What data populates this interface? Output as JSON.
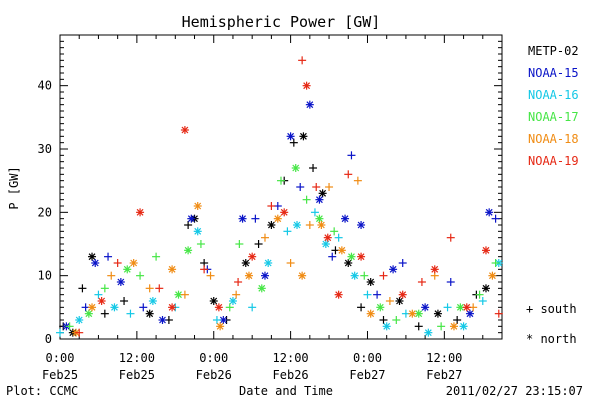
{
  "chart_data": {
    "type": "scatter",
    "title": "Hemispheric Power [GW]",
    "xlabel": "Date and Time",
    "ylabel": "P [GW]",
    "ylim": [
      0,
      48
    ],
    "xlim_hours": [
      0,
      69
    ],
    "x_units": "hours since 2011-02-25 00:00",
    "yticks": [
      0,
      10,
      20,
      30,
      40
    ],
    "xticks": [
      {
        "hour": 0,
        "label_top": "0:00",
        "label_bottom": "Feb25"
      },
      {
        "hour": 12,
        "label_top": "12:00",
        "label_bottom": "Feb25"
      },
      {
        "hour": 24,
        "label_top": "0:00",
        "label_bottom": "Feb26"
      },
      {
        "hour": 36,
        "label_top": "12:00",
        "label_bottom": "Feb26"
      },
      {
        "hour": 48,
        "label_top": "0:00",
        "label_bottom": "Feb27"
      },
      {
        "hour": 60,
        "label_top": "12:00",
        "label_bottom": "Feb27"
      }
    ],
    "grid": false,
    "legend_position": "right",
    "marker_legend": [
      {
        "symbol": "+",
        "label": "south"
      },
      {
        "symbol": "*",
        "label": "north"
      }
    ],
    "series": [
      {
        "name": "METP-02",
        "color": "#000000",
        "points": [
          {
            "x": 0.5,
            "y": 2,
            "m": "plus"
          },
          {
            "x": 2,
            "y": 1,
            "m": "star"
          },
          {
            "x": 3.5,
            "y": 8,
            "m": "plus"
          },
          {
            "x": 5,
            "y": 13,
            "m": "star"
          },
          {
            "x": 7,
            "y": 4,
            "m": "plus"
          },
          {
            "x": 10,
            "y": 6,
            "m": "plus"
          },
          {
            "x": 14,
            "y": 4,
            "m": "star"
          },
          {
            "x": 17,
            "y": 3,
            "m": "plus"
          },
          {
            "x": 20,
            "y": 18,
            "m": "plus"
          },
          {
            "x": 21,
            "y": 19,
            "m": "star"
          },
          {
            "x": 22.5,
            "y": 12,
            "m": "plus"
          },
          {
            "x": 24,
            "y": 6,
            "m": "star"
          },
          {
            "x": 26,
            "y": 3,
            "m": "plus"
          },
          {
            "x": 29,
            "y": 12,
            "m": "star"
          },
          {
            "x": 31,
            "y": 15,
            "m": "plus"
          },
          {
            "x": 33,
            "y": 18,
            "m": "star"
          },
          {
            "x": 35,
            "y": 25,
            "m": "plus"
          },
          {
            "x": 36.5,
            "y": 31,
            "m": "plus"
          },
          {
            "x": 38,
            "y": 32,
            "m": "star"
          },
          {
            "x": 39.5,
            "y": 27,
            "m": "plus"
          },
          {
            "x": 41,
            "y": 23,
            "m": "star"
          },
          {
            "x": 43,
            "y": 14,
            "m": "plus"
          },
          {
            "x": 45,
            "y": 12,
            "m": "star"
          },
          {
            "x": 47,
            "y": 5,
            "m": "plus"
          },
          {
            "x": 48.5,
            "y": 9,
            "m": "star"
          },
          {
            "x": 50.5,
            "y": 3,
            "m": "plus"
          },
          {
            "x": 53,
            "y": 6,
            "m": "star"
          },
          {
            "x": 56,
            "y": 2,
            "m": "plus"
          },
          {
            "x": 59,
            "y": 4,
            "m": "star"
          },
          {
            "x": 62,
            "y": 3,
            "m": "plus"
          },
          {
            "x": 65,
            "y": 7,
            "m": "plus"
          },
          {
            "x": 66.5,
            "y": 8,
            "m": "star"
          }
        ]
      },
      {
        "name": "NOAA-15",
        "color": "#0a14c8",
        "points": [
          {
            "x": 1,
            "y": 2,
            "m": "star"
          },
          {
            "x": 4,
            "y": 5,
            "m": "plus"
          },
          {
            "x": 5.5,
            "y": 12,
            "m": "star"
          },
          {
            "x": 7.5,
            "y": 13,
            "m": "plus"
          },
          {
            "x": 9.5,
            "y": 9,
            "m": "star"
          },
          {
            "x": 13,
            "y": 5,
            "m": "plus"
          },
          {
            "x": 16,
            "y": 3,
            "m": "star"
          },
          {
            "x": 20.5,
            "y": 19,
            "m": "star"
          },
          {
            "x": 23,
            "y": 11,
            "m": "plus"
          },
          {
            "x": 25.5,
            "y": 3,
            "m": "star"
          },
          {
            "x": 28.5,
            "y": 19,
            "m": "star"
          },
          {
            "x": 30.5,
            "y": 19,
            "m": "plus"
          },
          {
            "x": 32,
            "y": 10,
            "m": "star"
          },
          {
            "x": 34,
            "y": 21,
            "m": "plus"
          },
          {
            "x": 36,
            "y": 32,
            "m": "star"
          },
          {
            "x": 37.5,
            "y": 24,
            "m": "plus"
          },
          {
            "x": 39,
            "y": 37,
            "m": "star"
          },
          {
            "x": 40.5,
            "y": 22,
            "m": "star"
          },
          {
            "x": 42.5,
            "y": 13,
            "m": "plus"
          },
          {
            "x": 44.5,
            "y": 19,
            "m": "star"
          },
          {
            "x": 45.5,
            "y": 29,
            "m": "plus"
          },
          {
            "x": 47,
            "y": 18,
            "m": "star"
          },
          {
            "x": 49.5,
            "y": 7,
            "m": "plus"
          },
          {
            "x": 52,
            "y": 11,
            "m": "star"
          },
          {
            "x": 53.5,
            "y": 12,
            "m": "plus"
          },
          {
            "x": 57,
            "y": 5,
            "m": "star"
          },
          {
            "x": 61,
            "y": 9,
            "m": "plus"
          },
          {
            "x": 64,
            "y": 4,
            "m": "star"
          },
          {
            "x": 67,
            "y": 20,
            "m": "star"
          },
          {
            "x": 68,
            "y": 19,
            "m": "plus"
          }
        ]
      },
      {
        "name": "NOAA-16",
        "color": "#14c8e6",
        "points": [
          {
            "x": 0,
            "y": 1,
            "m": "plus"
          },
          {
            "x": 3,
            "y": 3,
            "m": "star"
          },
          {
            "x": 6,
            "y": 7,
            "m": "plus"
          },
          {
            "x": 8.5,
            "y": 5,
            "m": "star"
          },
          {
            "x": 11,
            "y": 4,
            "m": "plus"
          },
          {
            "x": 14.5,
            "y": 6,
            "m": "star"
          },
          {
            "x": 18,
            "y": 5,
            "m": "plus"
          },
          {
            "x": 21.5,
            "y": 17,
            "m": "star"
          },
          {
            "x": 24.5,
            "y": 3,
            "m": "plus"
          },
          {
            "x": 27,
            "y": 6,
            "m": "star"
          },
          {
            "x": 30,
            "y": 5,
            "m": "plus"
          },
          {
            "x": 32.5,
            "y": 12,
            "m": "star"
          },
          {
            "x": 35.5,
            "y": 17,
            "m": "plus"
          },
          {
            "x": 37,
            "y": 18,
            "m": "star"
          },
          {
            "x": 39.8,
            "y": 20,
            "m": "plus"
          },
          {
            "x": 41.5,
            "y": 15,
            "m": "star"
          },
          {
            "x": 43.5,
            "y": 16,
            "m": "plus"
          },
          {
            "x": 46,
            "y": 10,
            "m": "star"
          },
          {
            "x": 48,
            "y": 7,
            "m": "plus"
          },
          {
            "x": 51,
            "y": 2,
            "m": "star"
          },
          {
            "x": 54,
            "y": 4,
            "m": "plus"
          },
          {
            "x": 57.5,
            "y": 1,
            "m": "star"
          },
          {
            "x": 60.5,
            "y": 5,
            "m": "plus"
          },
          {
            "x": 63,
            "y": 2,
            "m": "star"
          },
          {
            "x": 66,
            "y": 6,
            "m": "plus"
          },
          {
            "x": 68.5,
            "y": 12,
            "m": "star"
          }
        ]
      },
      {
        "name": "NOAA-17",
        "color": "#46e646",
        "points": [
          {
            "x": 1.5,
            "y": 2,
            "m": "plus"
          },
          {
            "x": 4.5,
            "y": 4,
            "m": "star"
          },
          {
            "x": 7,
            "y": 8,
            "m": "plus"
          },
          {
            "x": 10.5,
            "y": 11,
            "m": "star"
          },
          {
            "x": 12.5,
            "y": 10,
            "m": "plus"
          },
          {
            "x": 15,
            "y": 13,
            "m": "plus"
          },
          {
            "x": 18.5,
            "y": 7,
            "m": "star"
          },
          {
            "x": 20,
            "y": 14,
            "m": "star"
          },
          {
            "x": 22,
            "y": 15,
            "m": "plus"
          },
          {
            "x": 26.5,
            "y": 5,
            "m": "plus"
          },
          {
            "x": 28,
            "y": 15,
            "m": "plus"
          },
          {
            "x": 31.5,
            "y": 8,
            "m": "star"
          },
          {
            "x": 34.5,
            "y": 25,
            "m": "plus"
          },
          {
            "x": 36.8,
            "y": 27,
            "m": "star"
          },
          {
            "x": 38.5,
            "y": 22,
            "m": "plus"
          },
          {
            "x": 40.5,
            "y": 19,
            "m": "star"
          },
          {
            "x": 42.8,
            "y": 17,
            "m": "plus"
          },
          {
            "x": 45.5,
            "y": 13,
            "m": "star"
          },
          {
            "x": 47.5,
            "y": 10,
            "m": "plus"
          },
          {
            "x": 50,
            "y": 5,
            "m": "star"
          },
          {
            "x": 52.5,
            "y": 3,
            "m": "plus"
          },
          {
            "x": 56,
            "y": 4,
            "m": "star"
          },
          {
            "x": 59.5,
            "y": 2,
            "m": "plus"
          },
          {
            "x": 62.5,
            "y": 5,
            "m": "star"
          },
          {
            "x": 65.5,
            "y": 7,
            "m": "plus"
          },
          {
            "x": 68,
            "y": 12,
            "m": "plus"
          }
        ]
      },
      {
        "name": "NOAA-18",
        "color": "#f08c14",
        "points": [
          {
            "x": 2.5,
            "y": 1,
            "m": "star"
          },
          {
            "x": 5,
            "y": 5,
            "m": "star"
          },
          {
            "x": 8,
            "y": 10,
            "m": "plus"
          },
          {
            "x": 11.5,
            "y": 12,
            "m": "star"
          },
          {
            "x": 14,
            "y": 8,
            "m": "plus"
          },
          {
            "x": 17.5,
            "y": 11,
            "m": "star"
          },
          {
            "x": 19.5,
            "y": 7,
            "m": "plus"
          },
          {
            "x": 21.5,
            "y": 21,
            "m": "star"
          },
          {
            "x": 23.5,
            "y": 10,
            "m": "plus"
          },
          {
            "x": 25,
            "y": 2,
            "m": "star"
          },
          {
            "x": 27.5,
            "y": 7,
            "m": "plus"
          },
          {
            "x": 29.5,
            "y": 10,
            "m": "star"
          },
          {
            "x": 32,
            "y": 16,
            "m": "plus"
          },
          {
            "x": 34,
            "y": 19,
            "m": "star"
          },
          {
            "x": 36,
            "y": 12,
            "m": "plus"
          },
          {
            "x": 37.8,
            "y": 10,
            "m": "star"
          },
          {
            "x": 39,
            "y": 18,
            "m": "plus"
          },
          {
            "x": 40.8,
            "y": 18,
            "m": "star"
          },
          {
            "x": 42,
            "y": 24,
            "m": "plus"
          },
          {
            "x": 44,
            "y": 14,
            "m": "star"
          },
          {
            "x": 46.5,
            "y": 25,
            "m": "plus"
          },
          {
            "x": 48.5,
            "y": 4,
            "m": "star"
          },
          {
            "x": 51.5,
            "y": 6,
            "m": "plus"
          },
          {
            "x": 55,
            "y": 4,
            "m": "star"
          },
          {
            "x": 58.5,
            "y": 10,
            "m": "plus"
          },
          {
            "x": 61.5,
            "y": 2,
            "m": "star"
          },
          {
            "x": 64.5,
            "y": 5,
            "m": "plus"
          },
          {
            "x": 67.5,
            "y": 10,
            "m": "star"
          }
        ]
      },
      {
        "name": "NOAA-19",
        "color": "#e62814",
        "points": [
          {
            "x": 3,
            "y": 1,
            "m": "plus"
          },
          {
            "x": 6.5,
            "y": 6,
            "m": "star"
          },
          {
            "x": 9,
            "y": 12,
            "m": "plus"
          },
          {
            "x": 12.5,
            "y": 20,
            "m": "star"
          },
          {
            "x": 15.5,
            "y": 8,
            "m": "plus"
          },
          {
            "x": 17.5,
            "y": 5,
            "m": "star"
          },
          {
            "x": 19.5,
            "y": 33,
            "m": "star"
          },
          {
            "x": 22.5,
            "y": 11,
            "m": "plus"
          },
          {
            "x": 24.8,
            "y": 5,
            "m": "star"
          },
          {
            "x": 27.8,
            "y": 9,
            "m": "plus"
          },
          {
            "x": 30,
            "y": 13,
            "m": "star"
          },
          {
            "x": 33,
            "y": 21,
            "m": "plus"
          },
          {
            "x": 35,
            "y": 20,
            "m": "star"
          },
          {
            "x": 37.8,
            "y": 44,
            "m": "plus"
          },
          {
            "x": 38.5,
            "y": 40,
            "m": "star"
          },
          {
            "x": 40,
            "y": 24,
            "m": "plus"
          },
          {
            "x": 41.8,
            "y": 16,
            "m": "star"
          },
          {
            "x": 43.5,
            "y": 7,
            "m": "star"
          },
          {
            "x": 45,
            "y": 26,
            "m": "plus"
          },
          {
            "x": 47,
            "y": 13,
            "m": "star"
          },
          {
            "x": 50.5,
            "y": 10,
            "m": "plus"
          },
          {
            "x": 53.5,
            "y": 7,
            "m": "star"
          },
          {
            "x": 56.5,
            "y": 9,
            "m": "plus"
          },
          {
            "x": 58.5,
            "y": 11,
            "m": "star"
          },
          {
            "x": 61,
            "y": 16,
            "m": "plus"
          },
          {
            "x": 63.5,
            "y": 5,
            "m": "star"
          },
          {
            "x": 66.5,
            "y": 14,
            "m": "star"
          },
          {
            "x": 68.5,
            "y": 4,
            "m": "plus"
          }
        ]
      }
    ]
  },
  "footer": {
    "left": "Plot: CCMC",
    "center": "Date and Time",
    "right": "2011/02/27 23:15:07"
  }
}
